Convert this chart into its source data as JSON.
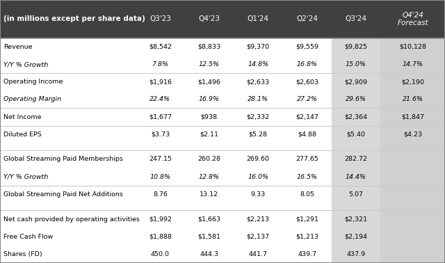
{
  "header_bg": "#404040",
  "header_text_color": "#ffffff",
  "header_italic_col": "#d0d0d0",
  "body_bg": "#ffffff",
  "body_text_color": "#000000",
  "italic_text_color": "#404040",
  "q324_col_bg": "#d8d8d8",
  "q424_col_bg": "#d0d0d0",
  "separator_color": "#cccccc",
  "header_row": [
    "(in millions except per share data)",
    "Q3'23",
    "Q4'23",
    "Q1'24",
    "Q2'24",
    "Q3'24",
    "Q4'24\nForecast"
  ],
  "rows": [
    {
      "label": "Revenue",
      "italic": false,
      "values": [
        "$8,542",
        "$8,833",
        "$9,370",
        "$9,559",
        "$9,825",
        "$10,128"
      ],
      "separator_before": true
    },
    {
      "label": "Y/Y % Growth",
      "italic": true,
      "values": [
        "7.8%",
        "12.5%",
        "14.8%",
        "16.8%",
        "15.0%",
        "14.7%"
      ]
    },
    {
      "label": "Operating Income",
      "italic": false,
      "values": [
        "$1,916",
        "$1,496",
        "$2,633",
        "$2,603",
        "$2,909",
        "$2,190"
      ],
      "separator_before": true
    },
    {
      "label": "Operating Margin",
      "italic": true,
      "values": [
        "22.4%",
        "16.9%",
        "28.1%",
        "27.2%",
        "29.6%",
        "21.6%"
      ]
    },
    {
      "label": "Net Income",
      "italic": false,
      "values": [
        "$1,677",
        "$938",
        "$2,332",
        "$2,147",
        "$2,364",
        "$1,847"
      ],
      "separator_before": true
    },
    {
      "label": "Diluted EPS",
      "italic": false,
      "values": [
        "$3.73",
        "$2.11",
        "$5.28",
        "$4.88",
        "$5.40",
        "$4.23"
      ],
      "separator_before": true
    },
    {
      "label": "",
      "italic": false,
      "values": [
        "",
        "",
        "",
        "",
        "",
        ""
      ],
      "spacer": true
    },
    {
      "label": "Global Streaming Paid Memberships",
      "italic": false,
      "values": [
        "247.15",
        "260.28",
        "269.60",
        "277.65",
        "282.72",
        ""
      ],
      "separator_before": true
    },
    {
      "label": "Y/Y % Growth",
      "italic": true,
      "values": [
        "10.8%",
        "12.8%",
        "16.0%",
        "16.5%",
        "14.4%",
        ""
      ]
    },
    {
      "label": "Global Streaming Paid Net Additions",
      "italic": false,
      "values": [
        "8.76",
        "13.12",
        "9.33",
        "8.05",
        "5.07",
        ""
      ],
      "separator_before": true
    },
    {
      "label": "",
      "italic": false,
      "values": [
        "",
        "",
        "",
        "",
        "",
        ""
      ],
      "spacer": true
    },
    {
      "label": "Net cash provided by operating activities",
      "italic": false,
      "values": [
        "$1,992",
        "$1,663",
        "$2,213",
        "$1,291",
        "$2,321",
        ""
      ],
      "separator_before": true
    },
    {
      "label": "Free Cash Flow",
      "italic": false,
      "values": [
        "$1,888",
        "$1,581",
        "$2,137",
        "$1,213",
        "$2,194",
        ""
      ]
    },
    {
      "label": "Shares (FD)",
      "italic": false,
      "values": [
        "450.0",
        "444.3",
        "441.7",
        "439.7",
        "437.9",
        ""
      ]
    }
  ]
}
